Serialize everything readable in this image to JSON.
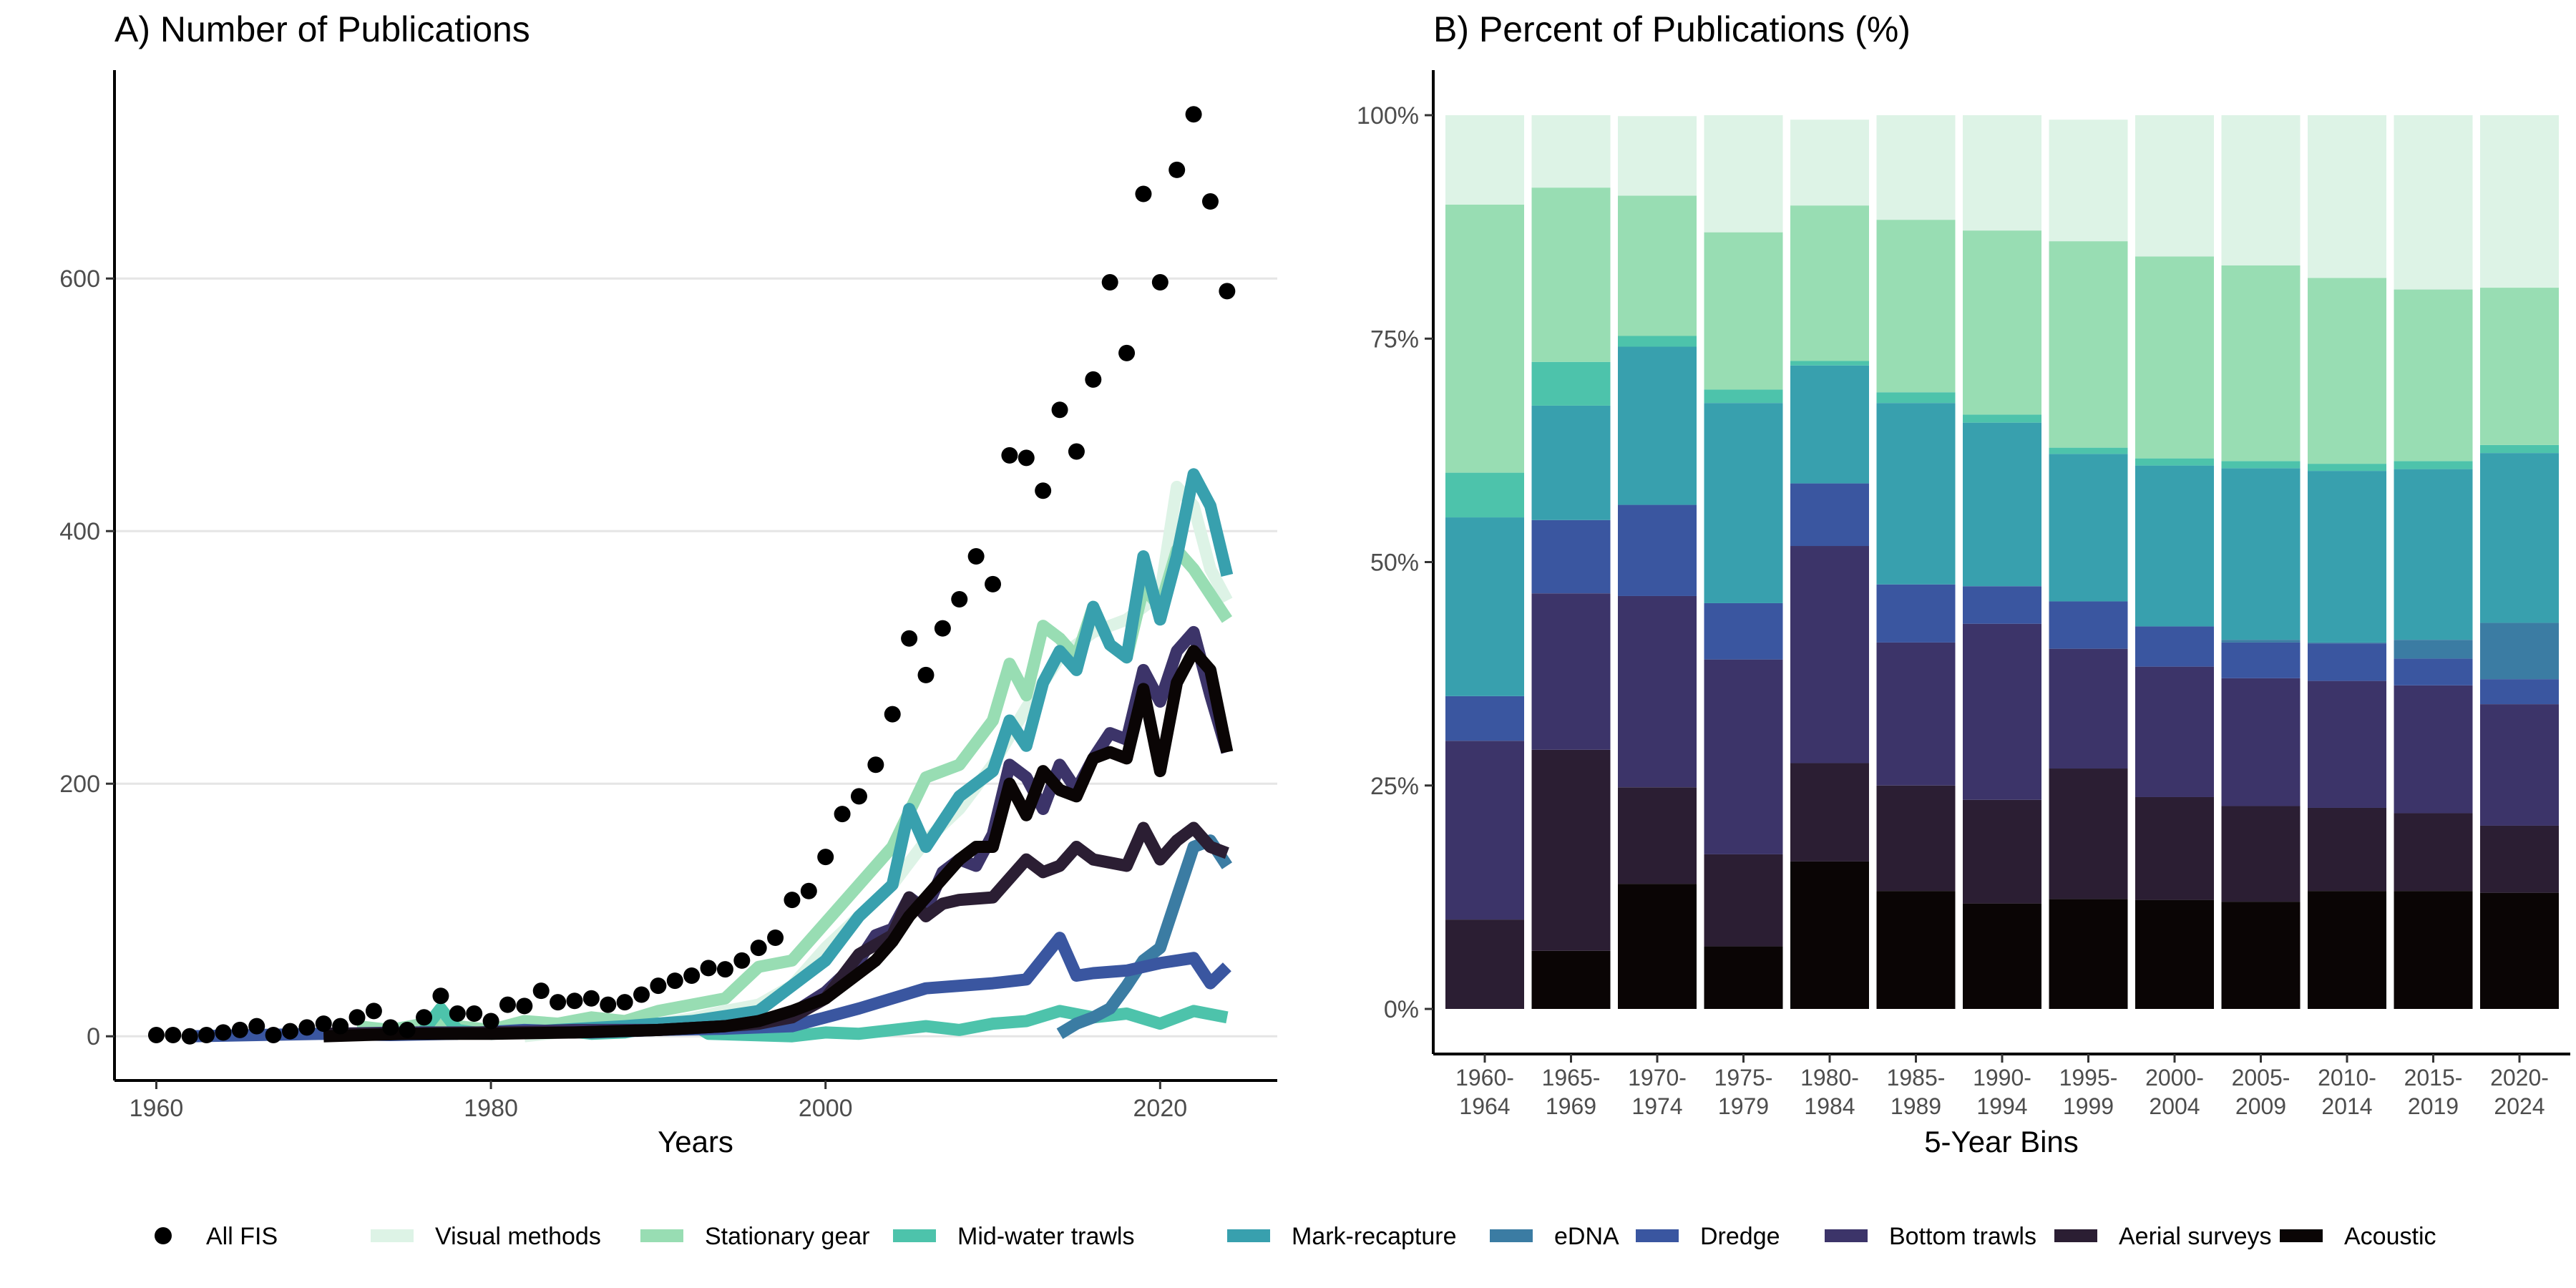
{
  "colors": {
    "Visual methods": "#DDF3E6",
    "Stationary gear": "#98DDB3",
    "Mid-water trawls": "#4DC3AB",
    "Mark-recapture": "#38A0AE",
    "eDNA": "#3B7CA3",
    "Dredge": "#3A56A0",
    "Bottom trawls": "#3C3469",
    "Aerial surveys": "#2B1E33",
    "Acoustic": "#0A0505",
    "All FIS": "#000000",
    "grid": "#E5E5E5"
  },
  "legend": [
    {
      "label": "All FIS",
      "key": "All FIS",
      "symbol": "point"
    },
    {
      "label": "Visual methods",
      "key": "Visual methods",
      "symbol": "line"
    },
    {
      "label": "Stationary gear",
      "key": "Stationary gear",
      "symbol": "line"
    },
    {
      "label": "Mid-water trawls",
      "key": "Mid-water trawls",
      "symbol": "line"
    },
    {
      "label": "Mark-recapture",
      "key": "Mark-recapture",
      "symbol": "line"
    },
    {
      "label": "eDNA",
      "key": "eDNA",
      "symbol": "line"
    },
    {
      "label": "Dredge",
      "key": "Dredge",
      "symbol": "line"
    },
    {
      "label": "Bottom trawls",
      "key": "Bottom trawls",
      "symbol": "line"
    },
    {
      "label": "Aerial surveys",
      "key": "Aerial surveys",
      "symbol": "line"
    },
    {
      "label": "Acoustic",
      "key": "Acoustic",
      "symbol": "line"
    }
  ],
  "chart_data": [
    {
      "type": "scatter",
      "title": "A) Number of Publications",
      "xlabel": "Years",
      "ylabel": "",
      "xlim": [
        1957.5,
        2027
      ],
      "ylim": [
        -35,
        765
      ],
      "xticks": [
        1960,
        1980,
        2000,
        2020
      ],
      "yticks": [
        0,
        200,
        400,
        600
      ],
      "grid": "horizontal",
      "points": {
        "name": "All FIS",
        "x": [
          1960,
          1961,
          1962,
          1963,
          1964,
          1965,
          1966,
          1967,
          1968,
          1969,
          1970,
          1971,
          1972,
          1973,
          1974,
          1975,
          1976,
          1977,
          1978,
          1979,
          1980,
          1981,
          1982,
          1983,
          1984,
          1985,
          1986,
          1987,
          1988,
          1989,
          1990,
          1991,
          1992,
          1993,
          1994,
          1995,
          1996,
          1997,
          1998,
          1999,
          2000,
          2001,
          2002,
          2003,
          2004,
          2005,
          2006,
          2007,
          2008,
          2009,
          2010,
          2011,
          2012,
          2013,
          2014,
          2015,
          2016,
          2017,
          2018,
          2019,
          2020,
          2021,
          2022,
          2023,
          2024
        ],
        "y": [
          1,
          1,
          0,
          1,
          3,
          5,
          8,
          1,
          4,
          7,
          10,
          8,
          15,
          20,
          7,
          5,
          15,
          32,
          18,
          18,
          12,
          25,
          24,
          36,
          27,
          28,
          30,
          25,
          27,
          33,
          40,
          44,
          48,
          54,
          53,
          60,
          70,
          78,
          108,
          115,
          142,
          176,
          190,
          215,
          255,
          315,
          286,
          323,
          346,
          380,
          358,
          460,
          458,
          432,
          496,
          463,
          520,
          597,
          541,
          667,
          597,
          686,
          730,
          661,
          590
        ]
      },
      "series": [
        {
          "name": "Visual methods",
          "x": [
            1982,
            1984,
            1986,
            1988,
            1990,
            1992,
            1994,
            1996,
            1998,
            2000,
            2002,
            2004,
            2006,
            2008,
            2010,
            2012,
            2014,
            2016,
            2018,
            2020,
            2021,
            2022,
            2023,
            2024
          ],
          "y": [
            0,
            3,
            5,
            8,
            10,
            14,
            20,
            25,
            40,
            70,
            95,
            120,
            155,
            180,
            215,
            260,
            300,
            320,
            330,
            350,
            435,
            420,
            370,
            345
          ]
        },
        {
          "name": "Stationary gear",
          "x": [
            1972,
            1974,
            1976,
            1978,
            1980,
            1982,
            1984,
            1986,
            1988,
            1990,
            1992,
            1994,
            1996,
            1998,
            2000,
            2002,
            2004,
            2006,
            2008,
            2010,
            2011,
            2012,
            2013,
            2014,
            2015,
            2016,
            2017,
            2018,
            2019,
            2020,
            2021,
            2022,
            2023,
            2024
          ],
          "y": [
            8,
            5,
            10,
            8,
            5,
            12,
            10,
            15,
            12,
            20,
            25,
            30,
            55,
            60,
            90,
            120,
            150,
            205,
            215,
            250,
            295,
            270,
            325,
            315,
            300,
            340,
            310,
            300,
            355,
            340,
            385,
            370,
            350,
            330
          ]
        },
        {
          "name": "Mid-water trawls",
          "x": [
            1976,
            1977,
            1978,
            1979,
            1980,
            1982,
            1984,
            1986,
            1988,
            1990,
            1992,
            1993,
            1998,
            2000,
            2002,
            2004,
            2006,
            2008,
            2010,
            2012,
            2014,
            2016,
            2018,
            2020,
            2022,
            2024
          ],
          "y": [
            5,
            22,
            5,
            3,
            2,
            3,
            5,
            2,
            3,
            8,
            10,
            2,
            0,
            3,
            2,
            5,
            8,
            5,
            10,
            12,
            20,
            15,
            18,
            10,
            20,
            15
          ]
        },
        {
          "name": "Mark-recapture",
          "x": [
            1980,
            1984,
            1988,
            1992,
            1996,
            1998,
            2000,
            2002,
            2004,
            2005,
            2006,
            2008,
            2010,
            2011,
            2012,
            2013,
            2014,
            2015,
            2016,
            2017,
            2018,
            2019,
            2020,
            2021,
            2022,
            2023,
            2024
          ],
          "y": [
            2,
            5,
            8,
            12,
            20,
            40,
            60,
            95,
            120,
            180,
            150,
            190,
            210,
            250,
            230,
            280,
            305,
            290,
            340,
            310,
            300,
            380,
            330,
            380,
            445,
            420,
            365
          ]
        },
        {
          "name": "eDNA",
          "x": [
            2014,
            2015,
            2016,
            2017,
            2018,
            2019,
            2020,
            2021,
            2022,
            2023,
            2024
          ],
          "y": [
            2,
            10,
            15,
            22,
            40,
            60,
            70,
            110,
            150,
            155,
            135
          ]
        },
        {
          "name": "Dredge",
          "x": [
            1962,
            1966,
            1970,
            1974,
            1978,
            1982,
            1986,
            1990,
            1994,
            1998,
            2000,
            2002,
            2004,
            2006,
            2008,
            2010,
            2012,
            2014,
            2015,
            2016,
            2018,
            2020,
            2022,
            2023,
            2024
          ],
          "y": [
            0,
            1,
            2,
            1,
            2,
            5,
            3,
            5,
            6,
            8,
            15,
            22,
            30,
            38,
            40,
            42,
            45,
            78,
            48,
            50,
            52,
            58,
            62,
            42,
            55
          ]
        },
        {
          "name": "Bottom trawls",
          "x": [
            1970,
            1975,
            1980,
            1985,
            1990,
            1994,
            1996,
            1998,
            2000,
            2002,
            2003,
            2004,
            2005,
            2006,
            2007,
            2008,
            2009,
            2010,
            2011,
            2012,
            2013,
            2014,
            2015,
            2016,
            2017,
            2018,
            2019,
            2020,
            2021,
            2022,
            2023,
            2024
          ],
          "y": [
            2,
            3,
            3,
            5,
            5,
            8,
            12,
            18,
            35,
            60,
            80,
            85,
            110,
            100,
            130,
            140,
            135,
            160,
            215,
            205,
            180,
            215,
            195,
            220,
            240,
            235,
            290,
            265,
            305,
            320,
            270,
            225
          ]
        },
        {
          "name": "Aerial surveys",
          "x": [
            1970,
            1975,
            1980,
            1985,
            1990,
            1994,
            1996,
            1998,
            2000,
            2002,
            2004,
            2005,
            2006,
            2007,
            2008,
            2010,
            2012,
            2013,
            2014,
            2015,
            2016,
            2018,
            2019,
            2020,
            2021,
            2022,
            2023,
            2024
          ],
          "y": [
            2,
            2,
            3,
            3,
            5,
            8,
            10,
            15,
            30,
            65,
            80,
            110,
            95,
            105,
            108,
            110,
            140,
            130,
            135,
            150,
            140,
            135,
            165,
            140,
            155,
            165,
            150,
            145
          ]
        },
        {
          "name": "Acoustic",
          "x": [
            1970,
            1975,
            1980,
            1985,
            1990,
            1994,
            1996,
            1998,
            2000,
            2002,
            2003,
            2004,
            2005,
            2006,
            2007,
            2008,
            2009,
            2010,
            2011,
            2012,
            2013,
            2014,
            2015,
            2016,
            2017,
            2018,
            2019,
            2020,
            2021,
            2022,
            2023,
            2024
          ],
          "y": [
            0,
            2,
            2,
            3,
            5,
            8,
            12,
            20,
            30,
            50,
            60,
            75,
            95,
            110,
            125,
            140,
            150,
            150,
            200,
            175,
            210,
            195,
            190,
            220,
            225,
            220,
            275,
            210,
            280,
            305,
            290,
            225
          ]
        }
      ]
    },
    {
      "type": "bar",
      "title": "B) Percent of Publications (%)",
      "xlabel": "5-Year Bins",
      "ylabel": "",
      "ylim": [
        0,
        100
      ],
      "yticks": [
        "0%",
        "25%",
        "50%",
        "75%",
        "100%"
      ],
      "stacked": true,
      "categories": [
        "1960-\n1964",
        "1965-\n1969",
        "1970-\n1974",
        "1975-\n1979",
        "1980-\n1984",
        "1985-\n1989",
        "1990-\n1994",
        "1995-\n1999",
        "2000-\n2004",
        "2005-\n2009",
        "2010-\n2014",
        "2015-\n2019",
        "2020-\n2024"
      ],
      "series": [
        {
          "name": "Acoustic",
          "values": [
            0,
            6.5,
            14,
            7,
            16.5,
            13.2,
            11.8,
            12.3,
            12.2,
            12.0,
            13.2,
            13.2,
            13.0
          ]
        },
        {
          "name": "Aerial surveys",
          "values": [
            10,
            22.5,
            10.8,
            10.3,
            11.0,
            11.8,
            11.6,
            14.6,
            11.5,
            10.7,
            9.3,
            8.7,
            7.5
          ]
        },
        {
          "name": "Bottom trawls",
          "values": [
            20,
            17.5,
            21.4,
            21.8,
            24.3,
            16.0,
            19.7,
            13.4,
            14.6,
            14.3,
            14.2,
            14.3,
            13.6
          ]
        },
        {
          "name": "Dredge",
          "values": [
            5,
            8.2,
            10.2,
            6.3,
            7.0,
            6.5,
            4.2,
            5.3,
            4.5,
            4.0,
            4.2,
            3.0,
            2.8
          ]
        },
        {
          "name": "eDNA",
          "values": [
            0,
            0,
            0,
            0,
            0,
            0,
            0,
            0,
            0,
            0.3,
            0.1,
            2.1,
            6.3
          ]
        },
        {
          "name": "Mark-recapture",
          "values": [
            20,
            12.8,
            17.7,
            22.4,
            13.2,
            20.3,
            18.3,
            16.5,
            18.0,
            19.2,
            19.2,
            19.1,
            19.0
          ]
        },
        {
          "name": "Mid-water trawls",
          "values": [
            5,
            4.9,
            1.2,
            1.5,
            0.5,
            1.2,
            0.9,
            0.7,
            0.8,
            0.8,
            0.8,
            0.9,
            0.9
          ]
        },
        {
          "name": "Stationary gear",
          "values": [
            30,
            19.5,
            15.7,
            17.6,
            17.4,
            19.3,
            20.6,
            23.1,
            22.6,
            21.9,
            20.8,
            19.2,
            17.6
          ]
        },
        {
          "name": "Visual methods",
          "values": [
            10,
            8.1,
            8.9,
            13.1,
            9.6,
            11.7,
            12.9,
            13.6,
            15.8,
            16.8,
            18.2,
            19.5,
            19.3
          ]
        }
      ]
    }
  ]
}
